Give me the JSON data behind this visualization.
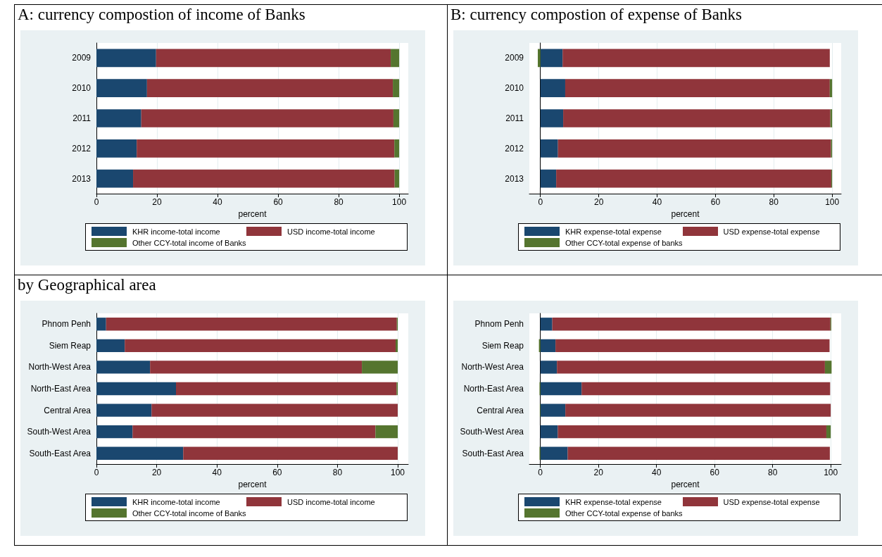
{
  "chart_data": [
    {
      "type": "bar",
      "orientation": "horizontal",
      "stacked": true,
      "title": "A: currency compostion of income of Banks",
      "xlabel": "percent",
      "categories": [
        "2009",
        "2010",
        "2011",
        "2012",
        "2013"
      ],
      "series": [
        {
          "name": "KHR income-total income",
          "color": "#1a476f",
          "values": [
            19.7,
            16.7,
            14.8,
            13.3,
            12.1
          ]
        },
        {
          "name": "USD income-total income",
          "color": "#90353b",
          "values": [
            77.5,
            81.2,
            83.3,
            85.1,
            86.4
          ]
        },
        {
          "name": "Other CCY-total income of Banks",
          "color": "#55752f",
          "values": [
            2.8,
            2.1,
            1.9,
            1.6,
            1.5
          ]
        }
      ],
      "xlim": [
        0,
        103
      ],
      "xticks": [
        0,
        20,
        40,
        60,
        80,
        100
      ],
      "grid": "x",
      "legend": "bottom"
    },
    {
      "type": "bar",
      "orientation": "horizontal",
      "stacked": true,
      "title": "B: currency compostion of expense of Banks",
      "xlabel": "percent",
      "categories": [
        "2009",
        "2010",
        "2011",
        "2012",
        "2013"
      ],
      "series": [
        {
          "name": "KHR expense-total expense",
          "color": "#1a476f",
          "values": [
            7.6,
            8.5,
            7.8,
            6.0,
            5.4
          ]
        },
        {
          "name": "USD expense-total expense",
          "color": "#90353b",
          "values": [
            91.6,
            90.7,
            91.6,
            93.6,
            94.3
          ]
        },
        {
          "name": "Other CCY-total expense of banks",
          "color": "#55752f",
          "values": [
            -0.9,
            0.8,
            0.6,
            0.4,
            0.3
          ]
        }
      ],
      "xlim": [
        -3.8,
        103.1
      ],
      "xticks": [
        0,
        20,
        40,
        60,
        80,
        100
      ],
      "grid": "x",
      "legend": "bottom"
    },
    {
      "type": "bar",
      "orientation": "horizontal",
      "stacked": true,
      "title": "by Geographical area",
      "xlabel": "percent",
      "categories": [
        "Phnom Penh",
        "Siem Reap",
        "North-West Area",
        "North-East Area",
        "Central Area",
        "South-West Area",
        "South-East Area"
      ],
      "series": [
        {
          "name": "KHR income-total income",
          "color": "#1a476f",
          "values": [
            3.2,
            9.4,
            17.8,
            26.4,
            18.3,
            12.0,
            28.8
          ]
        },
        {
          "name": "USD income-total income",
          "color": "#90353b",
          "values": [
            96.5,
            89.9,
            70.3,
            73.2,
            81.7,
            80.6,
            71.2
          ]
        },
        {
          "name": "Other CCY-total income of Banks",
          "color": "#55752f",
          "values": [
            0.3,
            0.7,
            11.9,
            0.4,
            0,
            7.4,
            0
          ]
        }
      ],
      "xlim": [
        0,
        103.5
      ],
      "xticks": [
        0,
        20,
        40,
        60,
        80,
        100
      ],
      "grid": "x",
      "legend": "bottom"
    },
    {
      "type": "bar",
      "orientation": "horizontal",
      "stacked": true,
      "xlabel": "percent",
      "categories": [
        "Phnom Penh",
        "Siem Reap",
        "North-West Area",
        "North-East Area",
        "Central Area",
        "South-West Area",
        "South-East Area"
      ],
      "series": [
        {
          "name": "KHR expense-total expense",
          "color": "#1a476f",
          "values": [
            4.1,
            5.2,
            5.7,
            14.2,
            8.6,
            6.0,
            9.4
          ]
        },
        {
          "name": "USD expense-total expense",
          "color": "#90353b",
          "values": [
            95.8,
            94.4,
            92.3,
            85.6,
            91.4,
            92.5,
            90.3
          ]
        },
        {
          "name": "Other CCY-total expense of banks",
          "color": "#55752f",
          "values": [
            0.3,
            -0.5,
            2.3,
            -0.3,
            -0.2,
            1.5,
            -0.3
          ]
        }
      ],
      "xlim": [
        -3.8,
        103.6
      ],
      "xticks": [
        0,
        20,
        40,
        60,
        80,
        100
      ],
      "grid": "x",
      "legend": "bottom"
    }
  ]
}
